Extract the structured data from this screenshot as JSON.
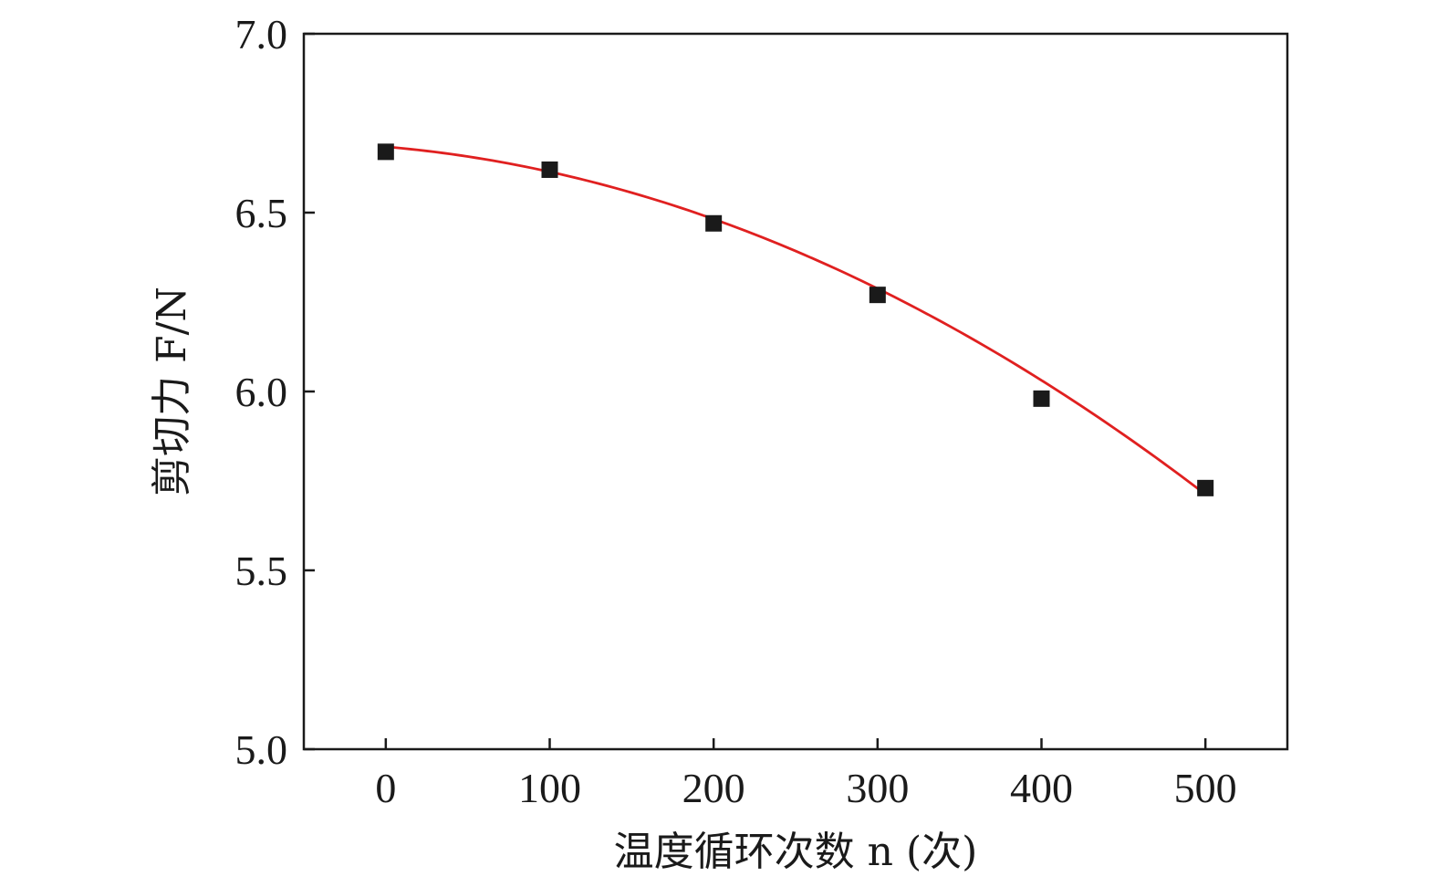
{
  "chart_data": {
    "type": "scatter",
    "title": "",
    "xlabel": "温度循环次数 n (次)",
    "ylabel": "剪切力 F/N",
    "xlim": [
      -50,
      550
    ],
    "ylim": [
      5.0,
      7.0
    ],
    "xticks": [
      0,
      100,
      200,
      300,
      400,
      500
    ],
    "xtick_labels": [
      "0",
      "100",
      "200",
      "300",
      "400",
      "500"
    ],
    "yticks": [
      5.0,
      5.5,
      6.0,
      6.5,
      7.0
    ],
    "ytick_labels": [
      "5.0",
      "5.5",
      "6.0",
      "6.5",
      "7.0"
    ],
    "grid": false,
    "series": [
      {
        "marker": "square",
        "color": "#1a1a1a",
        "x": [
          0,
          100,
          200,
          300,
          400,
          500
        ],
        "y": [
          6.67,
          6.62,
          6.47,
          6.27,
          5.98,
          5.73
        ]
      }
    ],
    "fit_curve": {
      "type": "quadratic",
      "color": "#e02020",
      "x_range": [
        0,
        500
      ],
      "coefficients": [
        6.684,
        -0.000388,
        -3.11e-06
      ]
    }
  }
}
